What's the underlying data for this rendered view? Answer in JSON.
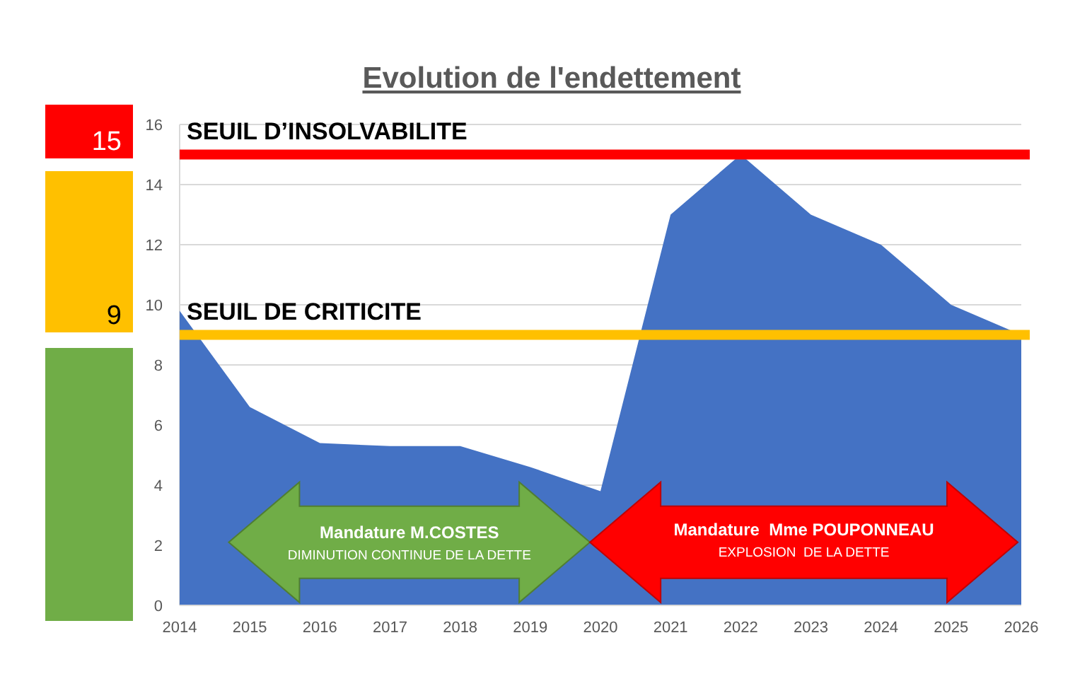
{
  "chart_data": {
    "type": "area",
    "title": "Evolution de l'endettement",
    "x": [
      2014,
      2015,
      2016,
      2017,
      2018,
      2019,
      2020,
      2021,
      2022,
      2023,
      2024,
      2025,
      2026
    ],
    "series": [
      {
        "color": "#4472c4",
        "values": [
          9.8,
          6.6,
          5.4,
          5.3,
          5.3,
          4.6,
          3.8,
          13,
          15,
          13,
          12,
          10,
          9
        ]
      }
    ],
    "xlim": [
      2014,
      2026
    ],
    "xticks": [
      2014,
      2015,
      2016,
      2017,
      2018,
      2019,
      2020,
      2021,
      2022,
      2023,
      2024,
      2025,
      2026
    ],
    "ylim": [
      0,
      16
    ],
    "yticks": [
      0,
      2,
      4,
      6,
      8,
      10,
      12,
      14,
      16
    ],
    "grid": "y",
    "ref_lines": [
      {
        "axis": "y",
        "value": 15,
        "label": "SEUIL D’INSOLVABILITE",
        "color": "#ff0000"
      },
      {
        "axis": "y",
        "value": 9,
        "label": "SEUIL DE CRITICITE",
        "color": "#ffc000"
      }
    ],
    "annotations": [
      "Mandature M.COSTES",
      "DIMINUTION CONTINUE DE LA DETTE",
      "Mandature  Mme POUPONNEAU",
      "EXPLOSION  DE LA DETTE",
      "15",
      "9"
    ]
  }
}
